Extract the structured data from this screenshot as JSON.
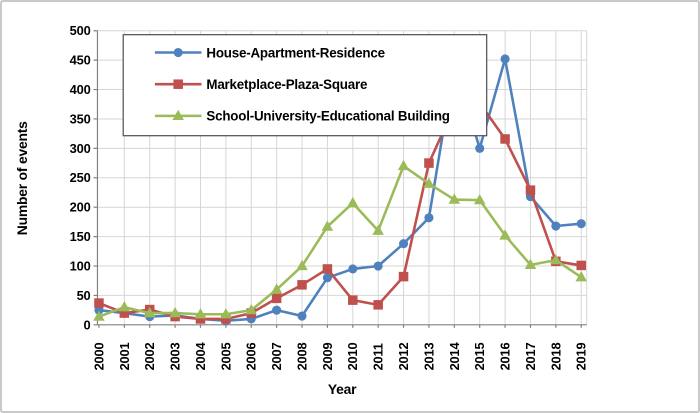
{
  "frame": {
    "background": "#ffffff",
    "border_color": "#c9c9c9"
  },
  "chart_data": {
    "type": "line",
    "title": "",
    "xlabel": "Year",
    "ylabel": "Number of events",
    "ylim": [
      0,
      500
    ],
    "ytick_step": 50,
    "grid": true,
    "legend_position": "top-inside",
    "x": [
      "2000",
      "2001",
      "2002",
      "2003",
      "2004",
      "2005",
      "2006",
      "2007",
      "2008",
      "2009",
      "2010",
      "2011",
      "2012",
      "2013",
      "2014",
      "2015",
      "2016",
      "2017",
      "2018",
      "2019"
    ],
    "series": [
      {
        "name": "House-Apartment-Residence",
        "color": "#4F81BD",
        "marker": "circle",
        "values": [
          25,
          20,
          14,
          16,
          10,
          7,
          10,
          25,
          15,
          80,
          95,
          100,
          138,
          182,
          443,
          300,
          452,
          218,
          168,
          172
        ]
      },
      {
        "name": "Marketplace-Plaza-Square",
        "color": "#C0504D",
        "marker": "square",
        "values": [
          37,
          20,
          26,
          14,
          10,
          10,
          20,
          45,
          68,
          95,
          42,
          34,
          82,
          275,
          370,
          377,
          316,
          229,
          108,
          101
        ]
      },
      {
        "name": "School-University-Educational Building",
        "color": "#9BBB59",
        "marker": "triangle",
        "values": [
          14,
          30,
          20,
          20,
          18,
          18,
          25,
          60,
          100,
          167,
          207,
          160,
          270,
          240,
          213,
          212,
          152,
          102,
          110,
          81
        ]
      }
    ],
    "colors": {
      "axis": "#808080",
      "gridline": "#D6D6D6",
      "text": "#000000",
      "legend_border": "#58595B",
      "legend_fill": "#FFFFFF"
    }
  }
}
